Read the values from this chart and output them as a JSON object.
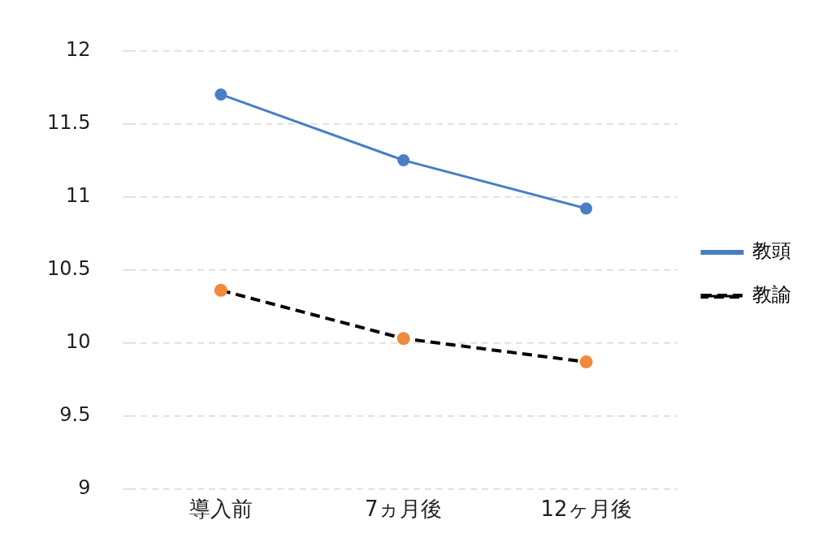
{
  "chart_data": {
    "type": "line",
    "categories": [
      "導入前",
      "7ヵ月後",
      "12ヶ月後"
    ],
    "series": [
      {
        "name": "教頭",
        "color": "#4a7ec4",
        "values": [
          11.7,
          11.25,
          10.92
        ],
        "line_style": "solid"
      },
      {
        "name": "教諭",
        "color": "#000000",
        "colors": [
          "#f08a3c",
          "#f08a3c",
          "#f08a3c"
        ],
        "values": [
          10.36,
          10.03,
          9.87
        ],
        "line_style": "dashed"
      }
    ],
    "ylim": [
      9,
      12
    ],
    "yticks": [
      9,
      9.5,
      10,
      10.5,
      11,
      11.5,
      12
    ],
    "grid": "y",
    "legend": "right",
    "marker": "circle"
  }
}
